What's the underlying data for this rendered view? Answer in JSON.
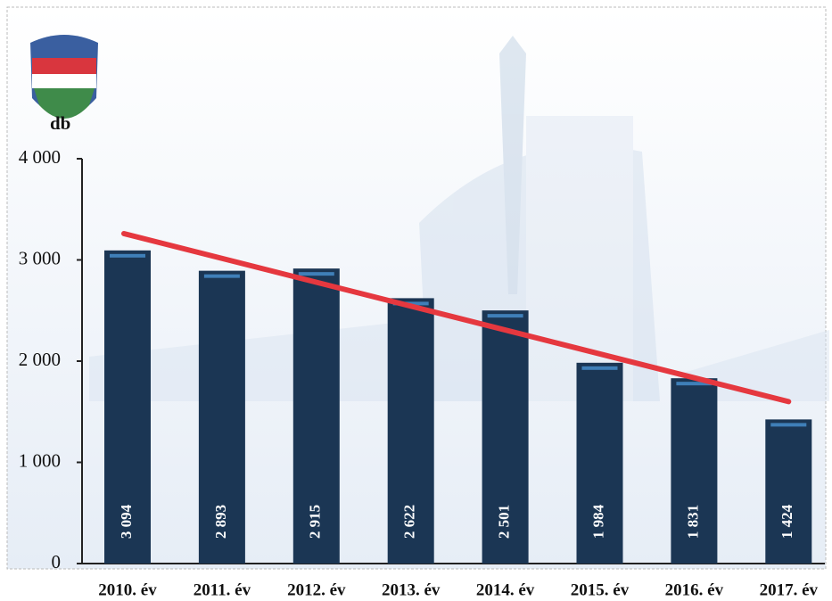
{
  "chart_data": {
    "type": "bar",
    "y_label": "db",
    "categories": [
      "2010. év",
      "2011. év",
      "2012. év",
      "2013. év",
      "2014. év",
      "2015. év",
      "2016. év",
      "2017. év"
    ],
    "values": [
      3094,
      2893,
      2915,
      2622,
      2501,
      1984,
      1831,
      1424
    ],
    "value_labels": [
      "3 094",
      "2 893",
      "2 915",
      "2 622",
      "2 501",
      "1 984",
      "1 831",
      "1 424"
    ],
    "color": "#1b3654",
    "ylim": [
      0,
      4000
    ],
    "yticks": [
      0,
      {
        "value": 1000,
        "label": "1 000"
      },
      {
        "value": 2000,
        "label": "2 000"
      },
      {
        "value": 3000,
        "label": "3 000"
      },
      {
        "value": 4000,
        "label": "4 000"
      }
    ],
    "trendline": {
      "start": 3260,
      "end": 1600,
      "color": "#e5383f"
    }
  }
}
